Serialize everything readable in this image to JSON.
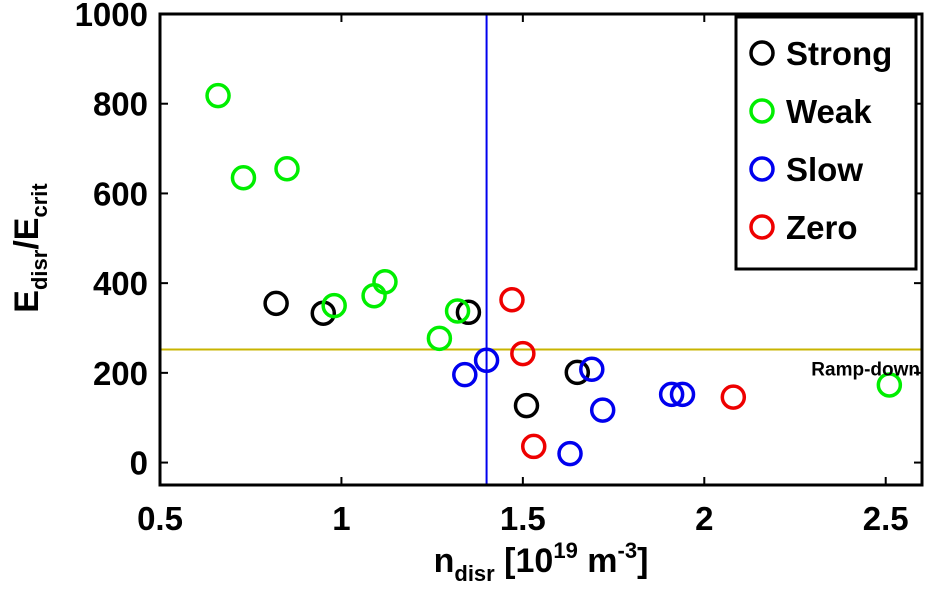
{
  "chart_data": {
    "type": "scatter",
    "xlabel": {
      "main": "n",
      "sub": "disr",
      "unit_a": " [10",
      "sup": "19",
      "unit_b": " m",
      "sup2": "-3",
      "unit_c": "]"
    },
    "ylabel": {
      "main1": "E",
      "sub1": "disr",
      "slash": "/E",
      "sub2": "crit"
    },
    "xlim": [
      0.5,
      2.6
    ],
    "ylim": [
      -50,
      1000
    ],
    "xticks": [
      0.5,
      1,
      1.5,
      2,
      2.5
    ],
    "xtick_labels": [
      "0.5",
      "1",
      "1.5",
      "2",
      "2.5"
    ],
    "yticks": [
      0,
      200,
      400,
      600,
      800,
      1000
    ],
    "ytick_labels": [
      "0",
      "200",
      "400",
      "600",
      "800",
      "1000"
    ],
    "grid": false,
    "legend_position": "top-right",
    "series": [
      {
        "name": "Strong",
        "color": "#000000",
        "points": [
          [
            0.82,
            355
          ],
          [
            0.95,
            333
          ],
          [
            1.35,
            335
          ],
          [
            1.51,
            127
          ],
          [
            1.65,
            201
          ]
        ]
      },
      {
        "name": "Weak",
        "color": "#00ee00",
        "points": [
          [
            0.66,
            818
          ],
          [
            0.73,
            635
          ],
          [
            0.85,
            655
          ],
          [
            0.98,
            350
          ],
          [
            1.09,
            372
          ],
          [
            1.12,
            403
          ],
          [
            1.27,
            277
          ],
          [
            1.32,
            338
          ],
          [
            2.51,
            173
          ]
        ]
      },
      {
        "name": "Slow",
        "color": "#0000ee",
        "points": [
          [
            1.34,
            196
          ],
          [
            1.4,
            228
          ],
          [
            1.63,
            20
          ],
          [
            1.69,
            208
          ],
          [
            1.72,
            117
          ],
          [
            1.91,
            152
          ],
          [
            1.94,
            152
          ]
        ]
      },
      {
        "name": "Zero",
        "color": "#ee0000",
        "points": [
          [
            1.47,
            363
          ],
          [
            1.5,
            243
          ],
          [
            1.53,
            36
          ],
          [
            2.08,
            146
          ]
        ]
      }
    ],
    "reference_lines": [
      {
        "orientation": "vertical",
        "x": 1.4,
        "color": "#0000ee"
      },
      {
        "orientation": "horizontal",
        "y": 252,
        "color": "#c8b400"
      }
    ],
    "annotations": [
      {
        "text": "Ramp-down"
      }
    ]
  }
}
